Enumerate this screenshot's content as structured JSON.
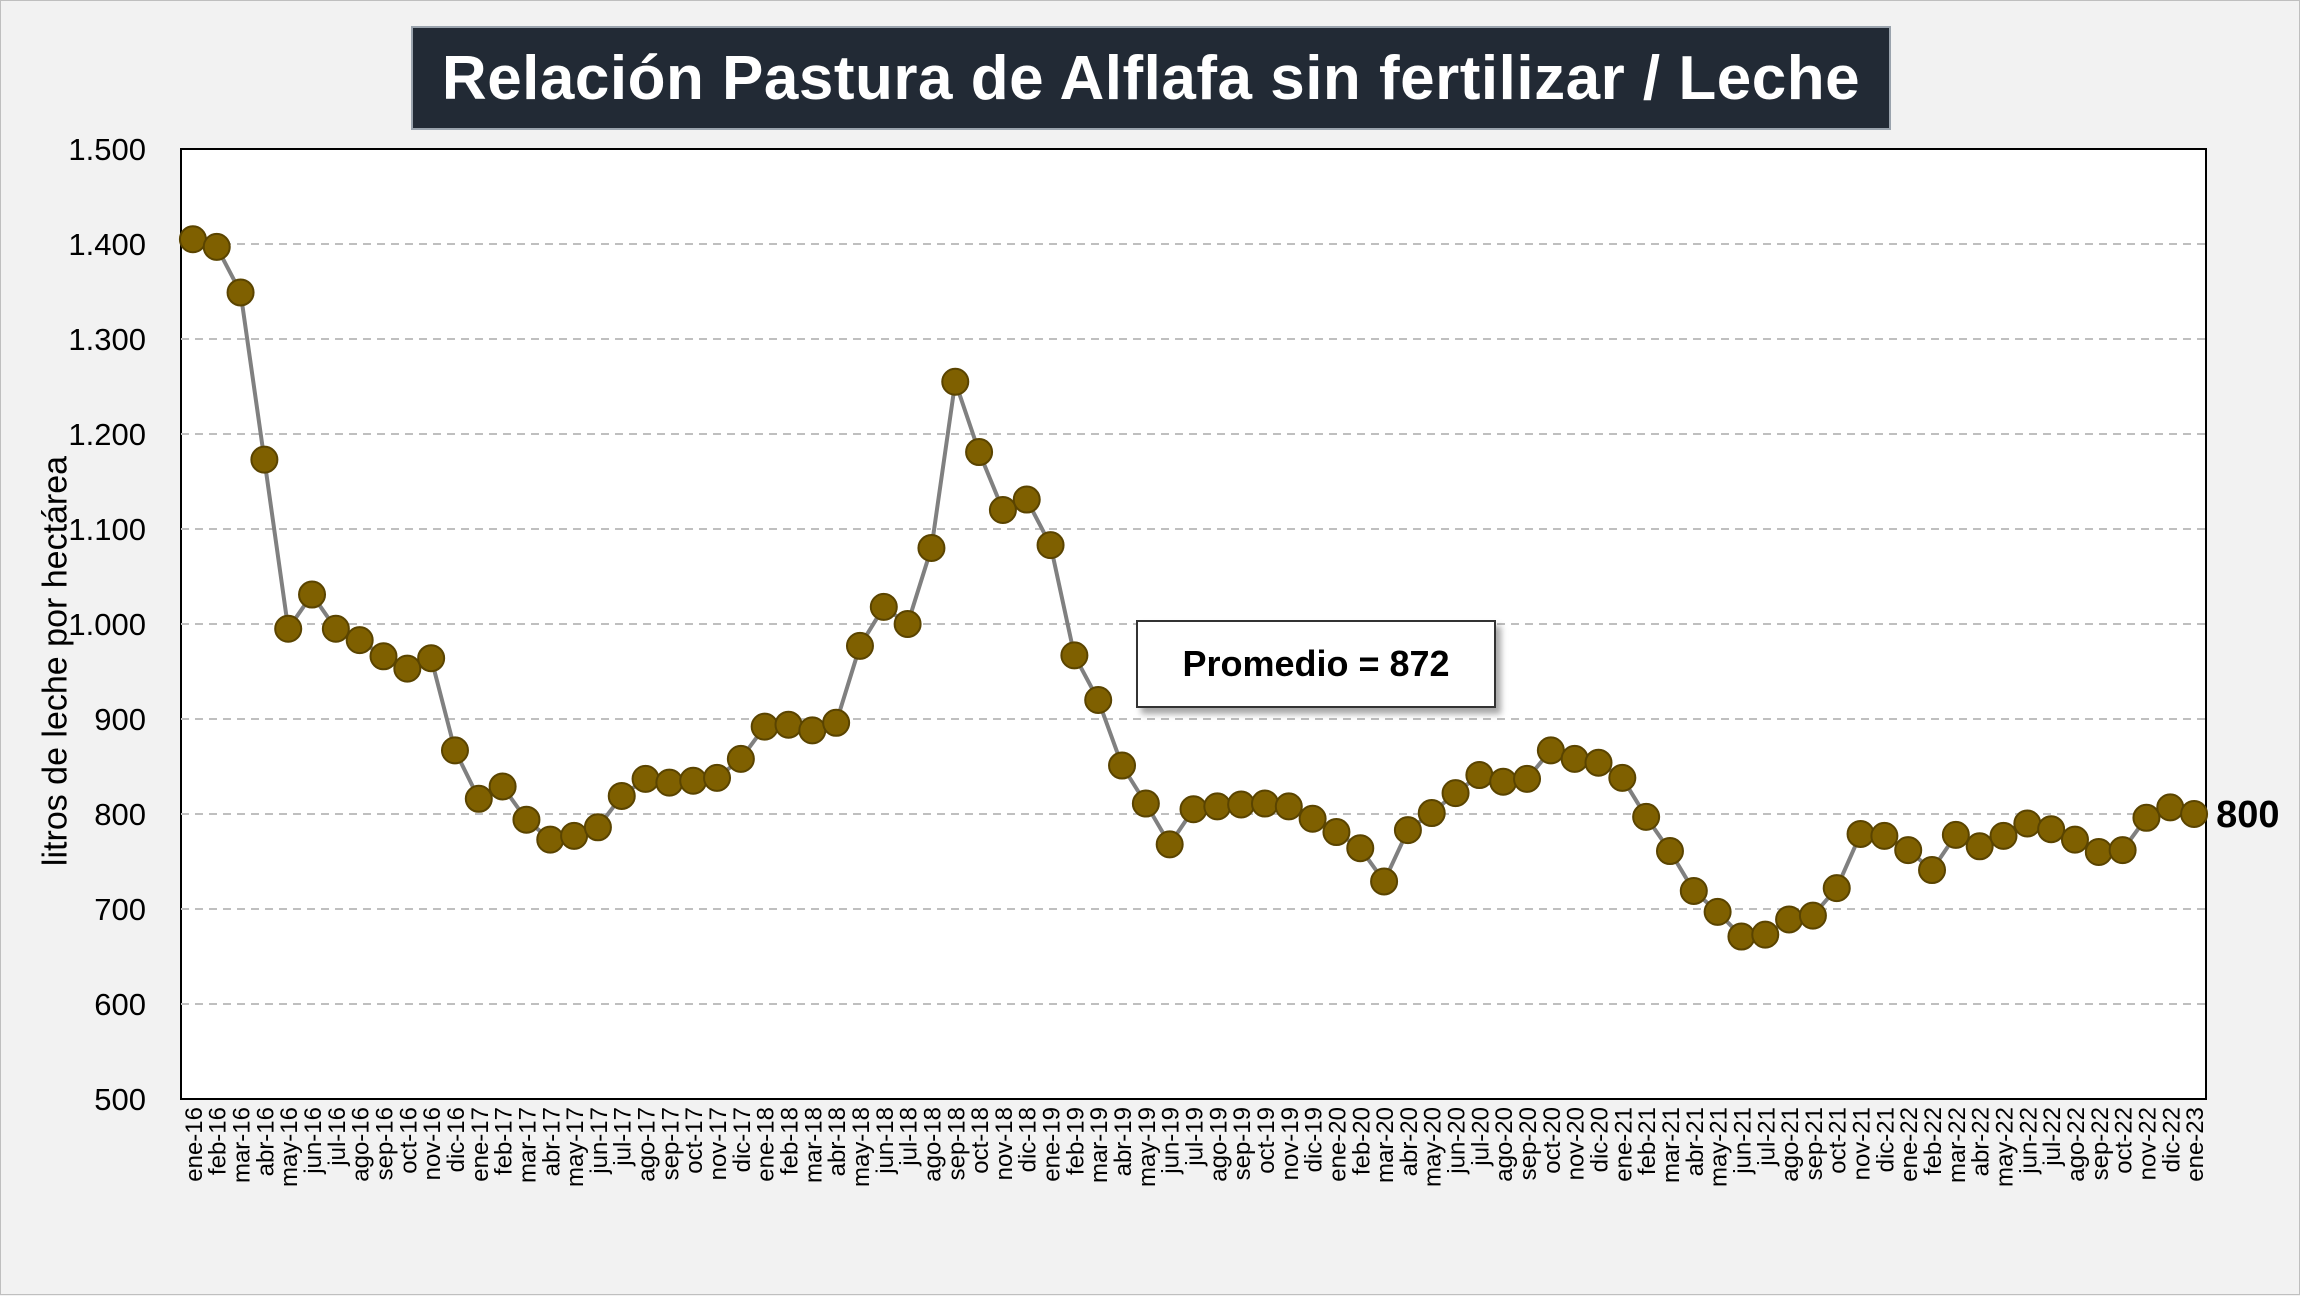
{
  "chart_data": {
    "type": "line",
    "title": "Relación Pastura de Alflafa sin fertilizar / Leche",
    "ylabel": "litros de leche por hectárea",
    "xlabel": "",
    "ylim": [
      500,
      1500
    ],
    "yticks": [
      "500",
      "600",
      "700",
      "800",
      "900",
      "1.000",
      "1.100",
      "1.200",
      "1.300",
      "1.400",
      "1.500"
    ],
    "grid": true,
    "annotation": "Promedio = 872",
    "last_value_label": "800",
    "colors": {
      "marker_fill": "#7f6000",
      "marker_edge": "#5a4400",
      "line": "#808080",
      "grid": "#bfbfbf",
      "title_bg": "#222a35"
    },
    "categories": [
      "ene-16",
      "feb-16",
      "mar-16",
      "abr-16",
      "may-16",
      "jun-16",
      "jul-16",
      "ago-16",
      "sep-16",
      "oct-16",
      "nov-16",
      "dic-16",
      "ene-17",
      "feb-17",
      "mar-17",
      "abr-17",
      "may-17",
      "jun-17",
      "jul-17",
      "ago-17",
      "sep-17",
      "oct-17",
      "nov-17",
      "dic-17",
      "ene-18",
      "feb-18",
      "mar-18",
      "abr-18",
      "may-18",
      "jun-18",
      "jul-18",
      "ago-18",
      "sep-18",
      "oct-18",
      "nov-18",
      "dic-18",
      "ene-19",
      "feb-19",
      "mar-19",
      "abr-19",
      "may-19",
      "jun-19",
      "jul-19",
      "ago-19",
      "sep-19",
      "oct-19",
      "nov-19",
      "dic-19",
      "ene-20",
      "feb-20",
      "mar-20",
      "abr-20",
      "may-20",
      "jun-20",
      "jul-20",
      "ago-20",
      "sep-20",
      "oct-20",
      "nov-20",
      "dic-20",
      "ene-21",
      "feb-21",
      "mar-21",
      "abr-21",
      "may-21",
      "jun-21",
      "jul-21",
      "ago-21",
      "sep-21",
      "oct-21",
      "nov-21",
      "dic-21",
      "ene-22",
      "feb-22",
      "mar-22",
      "abr-22",
      "may-22",
      "jun-22",
      "jul-22",
      "ago-22",
      "sep-22",
      "oct-22",
      "nov-22",
      "dic-22",
      "ene-23"
    ],
    "values": [
      1405,
      1397,
      1349,
      1173,
      995,
      1031,
      995,
      983,
      966,
      953,
      964,
      867,
      816,
      829,
      794,
      773,
      777,
      786,
      819,
      837,
      833,
      835,
      838,
      858,
      892,
      894,
      888,
      896,
      977,
      1018,
      1000,
      1080,
      1255,
      1181,
      1120,
      1131,
      1083,
      967,
      920,
      851,
      811,
      768,
      805,
      808,
      810,
      811,
      808,
      795,
      781,
      764,
      729,
      783,
      801,
      822,
      841,
      834,
      837,
      867,
      858,
      854,
      838,
      797,
      761,
      719,
      697,
      671,
      673,
      689,
      693,
      722,
      779,
      777,
      762,
      741,
      778,
      766,
      777,
      790,
      784,
      773,
      760,
      762,
      796,
      807,
      800
    ]
  }
}
